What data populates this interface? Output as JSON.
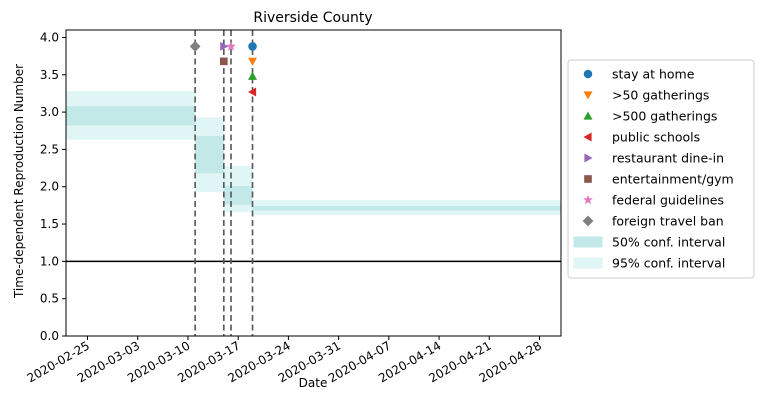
{
  "chart_data": {
    "type": "line",
    "title": "Riverside County",
    "xlabel": "Date",
    "ylabel": "Time-dependent Reproduction Number",
    "xlim": [
      "2020-02-22",
      "2020-05-01"
    ],
    "ylim": [
      0,
      4.1
    ],
    "x_ticks": [
      "2020-02-25",
      "2020-03-03",
      "2020-03-10",
      "2020-03-17",
      "2020-03-24",
      "2020-03-31",
      "2020-04-07",
      "2020-04-14",
      "2020-04-21",
      "2020-04-28"
    ],
    "y_ticks": [
      "0.0",
      "0.5",
      "1.0",
      "1.5",
      "2.0",
      "2.5",
      "3.0",
      "3.5",
      "4.0"
    ],
    "reference_line": 1.0,
    "grid": false,
    "legend_position": "center-right",
    "ci_colors": {
      "ci50": "#c2e8e8",
      "ci95": "#e0f6f6"
    },
    "ci_segments": [
      {
        "start": "2020-02-22",
        "end": "2020-03-11",
        "ci50": [
          2.82,
          3.08
        ],
        "ci95": [
          2.63,
          3.28
        ]
      },
      {
        "start": "2020-03-11",
        "end": "2020-03-15",
        "ci50": [
          2.18,
          2.68
        ],
        "ci95": [
          1.93,
          2.93
        ]
      },
      {
        "start": "2020-03-15",
        "end": "2020-03-19",
        "ci50": [
          1.76,
          2.01
        ],
        "ci95": [
          1.66,
          2.28
        ]
      },
      {
        "start": "2020-03-19",
        "end": "2020-05-01",
        "ci50": [
          1.68,
          1.74
        ],
        "ci95": [
          1.62,
          1.82
        ]
      }
    ],
    "interventions": [
      {
        "name": "stay at home",
        "date": "2020-03-19",
        "y": 3.88,
        "marker": "circle",
        "color": "#1f77b4"
      },
      {
        "name": ">50 gatherings",
        "date": "2020-03-19",
        "y": 3.68,
        "marker": "triangle-down",
        "color": "#ff7f0e"
      },
      {
        "name": ">500 gatherings",
        "date": "2020-03-19",
        "y": 3.48,
        "marker": "triangle-up",
        "color": "#2ca02c"
      },
      {
        "name": "public schools",
        "date": "2020-03-19",
        "y": 3.27,
        "marker": "triangle-left",
        "color": "#d62728"
      },
      {
        "name": "restaurant dine-in",
        "date": "2020-03-15",
        "y": 3.88,
        "marker": "triangle-right",
        "color": "#9467bd"
      },
      {
        "name": "entertainment/gym",
        "date": "2020-03-15",
        "y": 3.68,
        "marker": "square",
        "color": "#8c564b"
      },
      {
        "name": "federal guidelines",
        "date": "2020-03-16",
        "y": 3.88,
        "marker": "star",
        "color": "#e377c2"
      },
      {
        "name": "foreign travel ban",
        "date": "2020-03-11",
        "y": 3.88,
        "marker": "diamond",
        "color": "#7f7f7f"
      }
    ],
    "vlines": [
      "2020-03-11",
      "2020-03-15",
      "2020-03-16",
      "2020-03-19"
    ],
    "legend": [
      {
        "label": "stay at home",
        "marker": "circle",
        "color": "#1f77b4"
      },
      {
        "label": ">50 gatherings",
        "marker": "triangle-down",
        "color": "#ff7f0e"
      },
      {
        "label": ">500 gatherings",
        "marker": "triangle-up",
        "color": "#2ca02c"
      },
      {
        "label": "public schools",
        "marker": "triangle-left",
        "color": "#d62728"
      },
      {
        "label": "restaurant dine-in",
        "marker": "triangle-right",
        "color": "#9467bd"
      },
      {
        "label": "entertainment/gym",
        "marker": "square",
        "color": "#8c564b"
      },
      {
        "label": "federal guidelines",
        "marker": "star",
        "color": "#e377c2"
      },
      {
        "label": "foreign travel ban",
        "marker": "diamond",
        "color": "#7f7f7f"
      },
      {
        "label": "50% conf. interval",
        "marker": "patch",
        "color": "#c2e8e8"
      },
      {
        "label": "95% conf. interval",
        "marker": "patch",
        "color": "#e0f6f6"
      }
    ]
  }
}
